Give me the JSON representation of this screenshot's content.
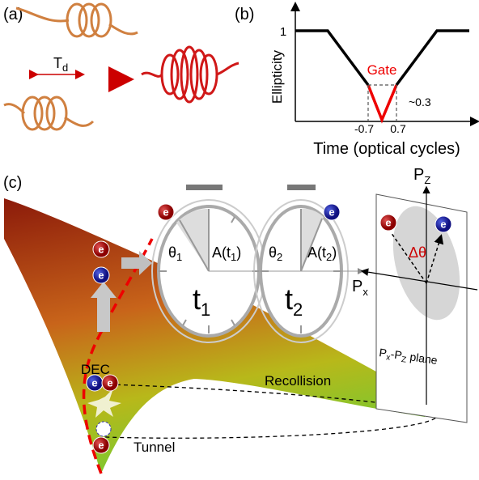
{
  "panels": {
    "a": "(a)",
    "b": "(b)",
    "c": "(c)"
  },
  "a": {
    "delay": "T",
    "delay_sub": "d"
  },
  "b": {
    "y_label": "Ellipticity",
    "x_label": "Time (optical cycles)",
    "y_tick": "1",
    "gate": "Gate",
    "min_label": "~0.3",
    "x_ticks": [
      "-0.7",
      "0.7"
    ]
  },
  "c": {
    "electron": "e",
    "clock1": {
      "t": "t",
      "sub": "1",
      "theta": "θ",
      "A": "A(t",
      "close": ")"
    },
    "clock2": {
      "t": "t",
      "sub": "2",
      "theta": "θ",
      "A": "A(t",
      "close": ")"
    },
    "pz": "P",
    "pz_sub": "Z",
    "px": "P",
    "px_sub": "x",
    "dtheta": "Δθ",
    "plane": {
      "p1": "P",
      "s1": "x",
      "dash": "-P",
      "s2": "Z",
      "rest": " plane"
    },
    "dec": "DEC",
    "recollision": "Recollision",
    "tunnel": "Tunnel"
  }
}
